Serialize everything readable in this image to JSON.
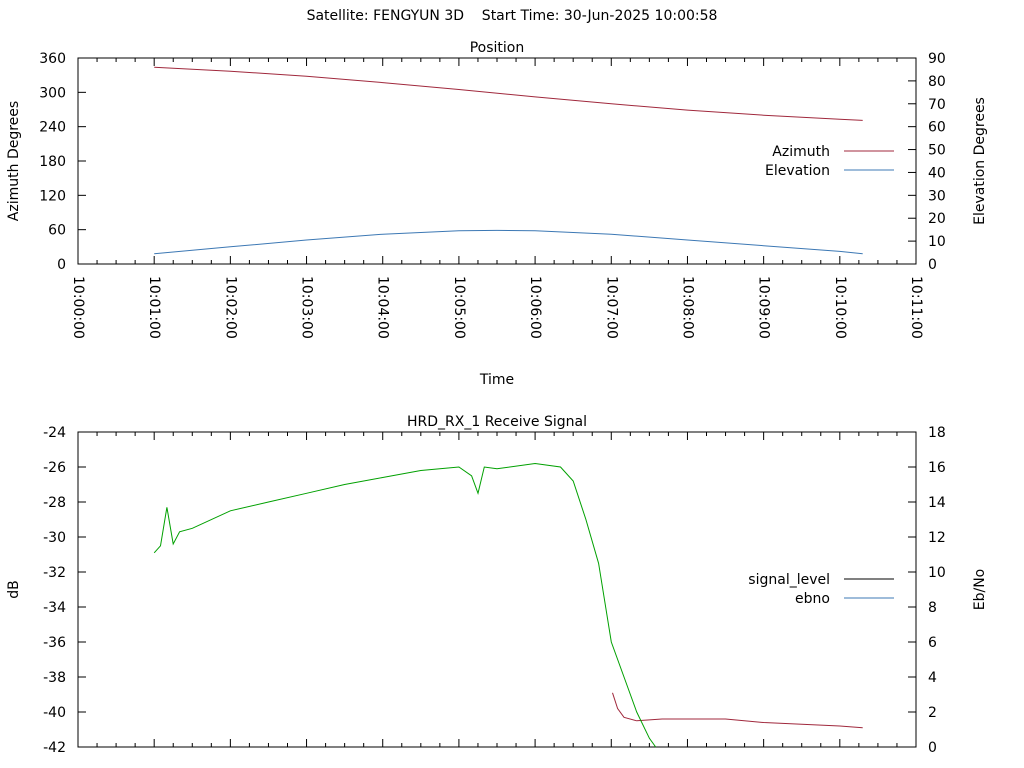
{
  "page_title": "Satellite: FENGYUN 3D    Start Time: 30-Jun-2025 10:00:58",
  "colors": {
    "azimuth": "#a0283c",
    "elevation": "#3c78b4",
    "signal_level": "#a0283c",
    "ebno": "#00a000",
    "axis": "#000000"
  },
  "chart_data": [
    {
      "type": "line",
      "title": "Position",
      "xlabel": "Time",
      "ylabel": "Azimuth Degrees",
      "y2label": "Elevation Degrees",
      "xlim": [
        "10:00:00",
        "10:11:00"
      ],
      "ylim": [
        0,
        360
      ],
      "y2lim": [
        0,
        90
      ],
      "x_ticks": [
        "10:00:00",
        "10:01:00",
        "10:02:00",
        "10:03:00",
        "10:04:00",
        "10:05:00",
        "10:06:00",
        "10:07:00",
        "10:08:00",
        "10:09:00",
        "10:10:00",
        "10:11:00"
      ],
      "y_ticks": [
        "0",
        "60",
        "120",
        "180",
        "240",
        "300",
        "360"
      ],
      "y2_ticks": [
        "0",
        "10",
        "20",
        "30",
        "40",
        "50",
        "60",
        "70",
        "80",
        "90"
      ],
      "legend_position": "right",
      "series": [
        {
          "name": "Azimuth",
          "axis": "y",
          "x": [
            "10:01:00",
            "10:02:00",
            "10:03:00",
            "10:04:00",
            "10:05:00",
            "10:06:00",
            "10:07:00",
            "10:08:00",
            "10:09:00",
            "10:10:00",
            "10:10:18"
          ],
          "values": [
            344,
            337,
            328,
            317,
            305,
            292,
            280,
            269,
            260,
            253,
            251
          ]
        },
        {
          "name": "Elevation",
          "axis": "y2",
          "x": [
            "10:01:00",
            "10:02:00",
            "10:03:00",
            "10:04:00",
            "10:05:00",
            "10:05:30",
            "10:06:00",
            "10:07:00",
            "10:08:00",
            "10:09:00",
            "10:10:00",
            "10:10:18"
          ],
          "values": [
            4.5,
            7.5,
            10.5,
            13.0,
            14.5,
            14.7,
            14.5,
            13.0,
            10.5,
            8.0,
            5.5,
            4.5
          ]
        }
      ]
    },
    {
      "type": "line",
      "title": "HRD_RX_1 Receive Signal",
      "xlabel": "",
      "ylabel": "dB",
      "y2label": "Eb/No",
      "xlim": [
        "10:00:00",
        "10:11:00"
      ],
      "ylim": [
        -42,
        -24
      ],
      "y2lim": [
        0,
        18
      ],
      "y_ticks": [
        "-24",
        "-26",
        "-28",
        "-30",
        "-32",
        "-34",
        "-36",
        "-38",
        "-40",
        "-42"
      ],
      "y2_ticks": [
        "0",
        "2",
        "4",
        "6",
        "8",
        "10",
        "12",
        "14",
        "16",
        "18"
      ],
      "legend_position": "right",
      "series": [
        {
          "name": "signal_level",
          "axis": "y",
          "x": [
            "10:07:01",
            "10:07:05",
            "10:07:10",
            "10:07:20",
            "10:07:40",
            "10:08:00",
            "10:08:30",
            "10:09:00",
            "10:09:30",
            "10:10:00",
            "10:10:18"
          ],
          "values": [
            -38.9,
            -39.8,
            -40.3,
            -40.5,
            -40.4,
            -40.4,
            -40.4,
            -40.6,
            -40.7,
            -40.8,
            -40.9
          ]
        },
        {
          "name": "ebno",
          "axis": "y2",
          "x": [
            "10:01:00",
            "10:01:05",
            "10:01:10",
            "10:01:15",
            "10:01:20",
            "10:01:30",
            "10:02:00",
            "10:02:30",
            "10:03:00",
            "10:03:30",
            "10:04:00",
            "10:04:30",
            "10:05:00",
            "10:05:10",
            "10:05:15",
            "10:05:20",
            "10:05:30",
            "10:06:00",
            "10:06:20",
            "10:06:30",
            "10:06:40",
            "10:06:50",
            "10:07:00",
            "10:07:10",
            "10:07:20",
            "10:07:30",
            "10:07:35"
          ],
          "values": [
            11.1,
            11.5,
            13.7,
            11.6,
            12.3,
            12.5,
            13.5,
            14.0,
            14.5,
            15.0,
            15.4,
            15.8,
            16.0,
            15.5,
            14.5,
            16.0,
            15.9,
            16.2,
            16.0,
            15.2,
            13.0,
            10.5,
            6.0,
            4.0,
            2.0,
            0.5,
            0.0
          ]
        }
      ]
    }
  ]
}
